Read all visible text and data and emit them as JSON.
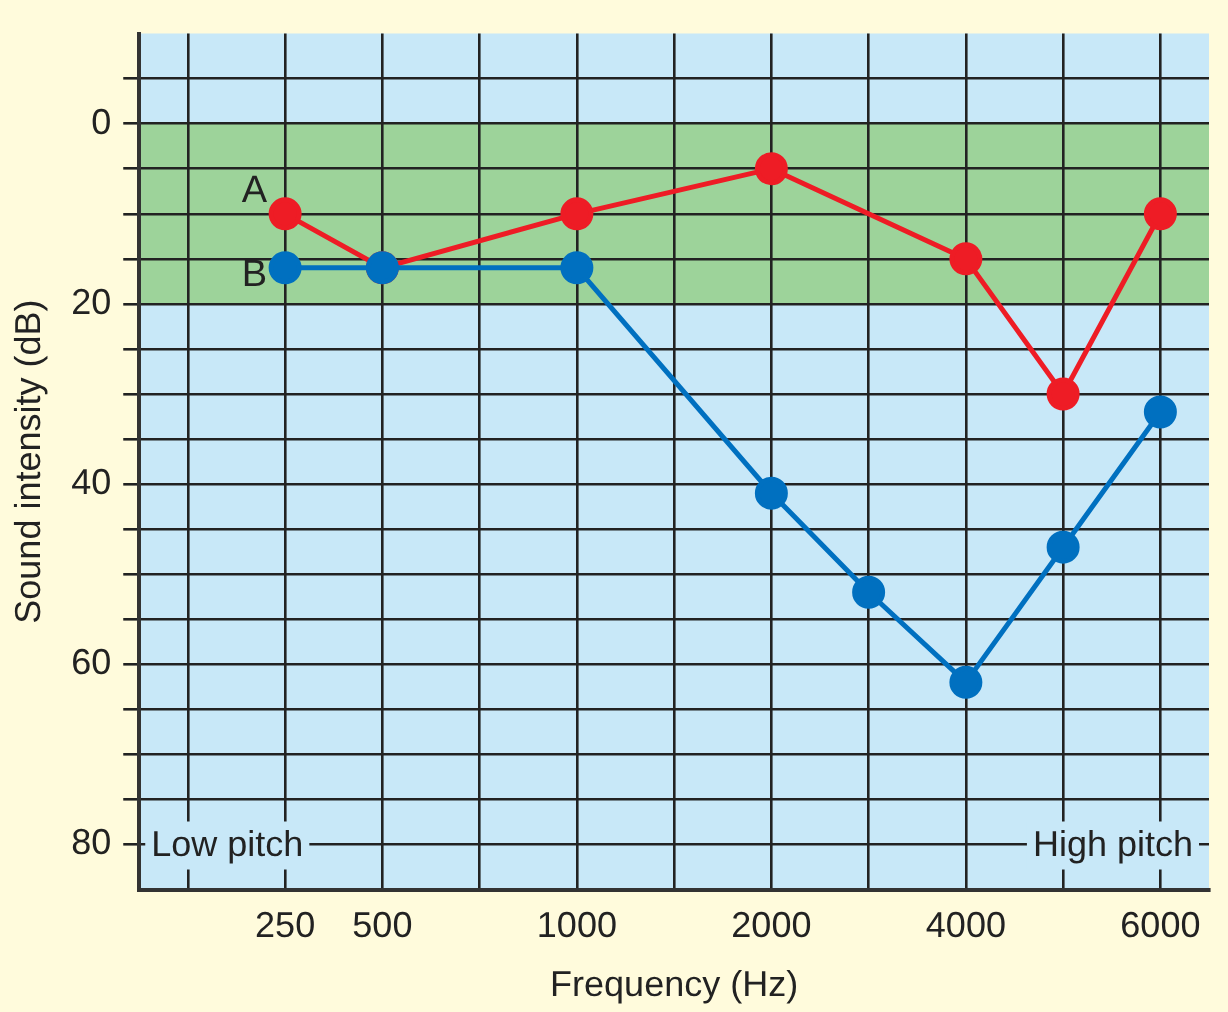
{
  "chart_data": {
    "type": "line",
    "xlabel": "Frequency (Hz)",
    "ylabel": "Sound intensity (dB)",
    "categories": [
      null,
      "250",
      "500",
      null,
      "1000",
      null,
      "2000",
      null,
      "4000",
      null,
      "6000"
    ],
    "series": [
      {
        "name": "A",
        "color": "#ee1c25",
        "values": [
          null,
          10,
          16,
          null,
          10,
          null,
          5,
          null,
          15,
          30,
          10
        ]
      },
      {
        "name": "B",
        "color": "#0070c0",
        "values": [
          null,
          16,
          16,
          null,
          16,
          null,
          41,
          52,
          62,
          47,
          32
        ]
      }
    ],
    "ylim": [
      85,
      -10
    ],
    "yticks": [
      {
        "value": -5,
        "label": null
      },
      0,
      {
        "value": 5,
        "label": null
      },
      {
        "value": 10,
        "label": null
      },
      {
        "value": 15,
        "label": null
      },
      20,
      {
        "value": 25,
        "label": null
      },
      {
        "value": 30,
        "label": null
      },
      {
        "value": 35,
        "label": null
      },
      40,
      {
        "value": 45,
        "label": null
      },
      {
        "value": 50,
        "label": null
      },
      {
        "value": 55,
        "label": null
      },
      60,
      {
        "value": 65,
        "label": null
      },
      {
        "value": 70,
        "label": null
      },
      {
        "value": 75,
        "label": null
      },
      80
    ],
    "bands": [
      {
        "axis": "y",
        "from": 0,
        "to": 20,
        "color": "#9dd39a"
      }
    ],
    "annotations": [
      "Low pitch",
      "High pitch"
    ],
    "grid": true,
    "legend": false,
    "marker": "circle",
    "line_style": "solid"
  }
}
